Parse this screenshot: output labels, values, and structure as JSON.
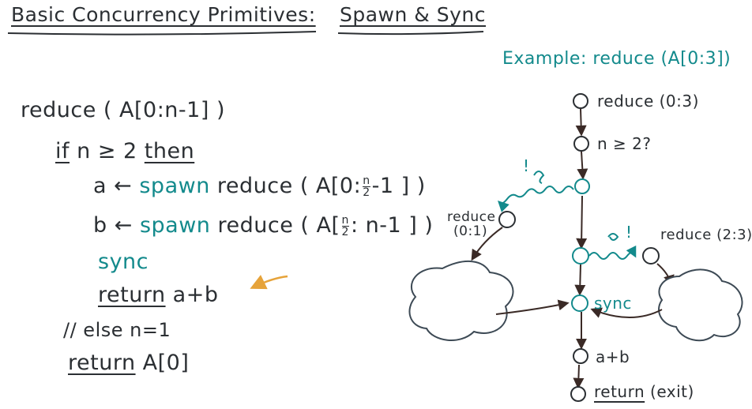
{
  "title": {
    "main": "Basic Concurrency Primitives:",
    "sub": "Spawn & Sync"
  },
  "code": {
    "line1": "reduce ( A[0:n-1] )",
    "if_kw": "if",
    "cond": "n ≥ 2",
    "then_kw": "then",
    "a_lhs": "a ←",
    "spawn1": "spawn",
    "call1_fn": "reduce ( A[0:",
    "call1_frac_num": "n",
    "call1_frac_den": "2",
    "call1_tail": "-1 ] )",
    "b_lhs": "b ←",
    "spawn2": "spawn",
    "call2_fn": "reduce ( A[",
    "call2_frac_num": "n",
    "call2_frac_den": "2",
    "call2_tail": ": n-1 ] )",
    "sync_kw": "sync",
    "return1_kw": "return",
    "return1_expr": "a+b",
    "else_comment": "// else n=1",
    "return2_kw": "return",
    "return2_expr": "A[0]"
  },
  "example": {
    "heading": "Example: reduce (A[0:3])",
    "node_reduce": "reduce (0:3)",
    "node_cond": "n ≥ 2?",
    "spawn_mark_1": "!",
    "spawn_mark_2": "!",
    "left_label_line1": "reduce",
    "left_label_line2": "(0:1)",
    "right_label": "reduce (2:3)",
    "sync_label": "sync",
    "sum_label": "a+b",
    "return_kw": "return",
    "return_note": "(exit)"
  },
  "colors": {
    "ink": "#2b2f33",
    "teal": "#138a8c",
    "orange": "#e6a33a",
    "arrow": "#3a2a26",
    "blob": "#3d4a55"
  }
}
